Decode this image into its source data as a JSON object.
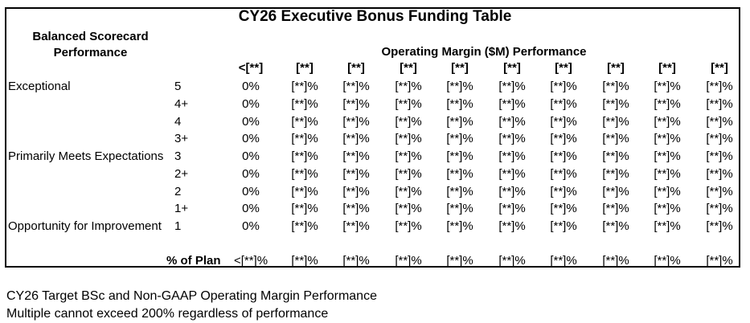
{
  "title": "CY26 Executive Bonus Funding Table",
  "bsc_header": "Balanced Scorecard Performance",
  "om_header": "Operating Margin ($M) Performance",
  "columns": [
    "<[**]",
    "[**]",
    "[**]",
    "[**]",
    "[**]",
    "[**]",
    "[**]",
    "[**]",
    "[**]",
    "[**]"
  ],
  "rows": [
    {
      "label": "Exceptional",
      "rating": "5",
      "cells": [
        "0%",
        "[**]%",
        "[**]%",
        "[**]%",
        "[**]%",
        "[**]%",
        "[**]%",
        "[**]%",
        "[**]%",
        "[**]%"
      ]
    },
    {
      "label": "",
      "rating": "4+",
      "cells": [
        "0%",
        "[**]%",
        "[**]%",
        "[**]%",
        "[**]%",
        "[**]%",
        "[**]%",
        "[**]%",
        "[**]%",
        "[**]%"
      ]
    },
    {
      "label": "",
      "rating": "4",
      "cells": [
        "0%",
        "[**]%",
        "[**]%",
        "[**]%",
        "[**]%",
        "[**]%",
        "[**]%",
        "[**]%",
        "[**]%",
        "[**]%"
      ]
    },
    {
      "label": "",
      "rating": "3+",
      "cells": [
        "0%",
        "[**]%",
        "[**]%",
        "[**]%",
        "[**]%",
        "[**]%",
        "[**]%",
        "[**]%",
        "[**]%",
        "[**]%"
      ]
    },
    {
      "label": "Primarily Meets Expectations",
      "rating": "3",
      "cells": [
        "0%",
        "[**]%",
        "[**]%",
        "[**]%",
        "[**]%",
        "[**]%",
        "[**]%",
        "[**]%",
        "[**]%",
        "[**]%"
      ]
    },
    {
      "label": "",
      "rating": "2+",
      "cells": [
        "0%",
        "[**]%",
        "[**]%",
        "[**]%",
        "[**]%",
        "[**]%",
        "[**]%",
        "[**]%",
        "[**]%",
        "[**]%"
      ]
    },
    {
      "label": "",
      "rating": "2",
      "cells": [
        "0%",
        "[**]%",
        "[**]%",
        "[**]%",
        "[**]%",
        "[**]%",
        "[**]%",
        "[**]%",
        "[**]%",
        "[**]%"
      ]
    },
    {
      "label": "",
      "rating": "1+",
      "cells": [
        "0%",
        "[**]%",
        "[**]%",
        "[**]%",
        "[**]%",
        "[**]%",
        "[**]%",
        "[**]%",
        "[**]%",
        "[**]%"
      ]
    },
    {
      "label": "Opportunity for Improvement",
      "rating": "1",
      "cells": [
        "0%",
        "[**]%",
        "[**]%",
        "[**]%",
        "[**]%",
        "[**]%",
        "[**]%",
        "[**]%",
        "[**]%",
        "[**]%"
      ]
    }
  ],
  "plan_row": {
    "label": "% of Plan",
    "cells": [
      "<[**]%",
      "[**]%",
      "[**]%",
      "[**]%",
      "[**]%",
      "[**]%",
      "[**]%",
      "[**]%",
      "[**]%",
      "[**]%"
    ]
  },
  "notes": [
    "CY26 Target BSc and Non-GAAP Operating Margin Performance",
    "Multiple cannot exceed 200% regardless of performance"
  ]
}
